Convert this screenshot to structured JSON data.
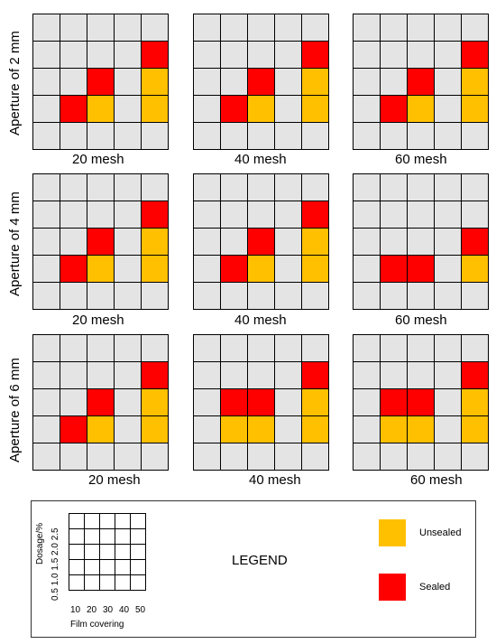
{
  "colors": {
    "empty": "#e4e4e4",
    "unsealed": "#ffc000",
    "sealed": "#ff0000"
  },
  "rows": [
    {
      "label": "Aperture of 2 mm",
      "panels": [
        {
          "mesh": "20 mesh",
          "cells": [
            [
              0,
              0,
              0,
              0,
              0
            ],
            [
              0,
              0,
              0,
              0,
              2
            ],
            [
              0,
              0,
              2,
              0,
              1
            ],
            [
              0,
              2,
              1,
              0,
              1
            ],
            [
              0,
              0,
              0,
              0,
              0
            ]
          ]
        },
        {
          "mesh": "40 mesh",
          "cells": [
            [
              0,
              0,
              0,
              0,
              0
            ],
            [
              0,
              0,
              0,
              0,
              2
            ],
            [
              0,
              0,
              2,
              0,
              1
            ],
            [
              0,
              2,
              1,
              0,
              1
            ],
            [
              0,
              0,
              0,
              0,
              0
            ]
          ]
        },
        {
          "mesh": "60 mesh",
          "cells": [
            [
              0,
              0,
              0,
              0,
              0
            ],
            [
              0,
              0,
              0,
              0,
              2
            ],
            [
              0,
              0,
              2,
              0,
              1
            ],
            [
              0,
              2,
              1,
              0,
              1
            ],
            [
              0,
              0,
              0,
              0,
              0
            ]
          ]
        }
      ]
    },
    {
      "label": "Aperture of 4 mm",
      "panels": [
        {
          "mesh": "20 mesh",
          "cells": [
            [
              0,
              0,
              0,
              0,
              0
            ],
            [
              0,
              0,
              0,
              0,
              2
            ],
            [
              0,
              0,
              2,
              0,
              1
            ],
            [
              0,
              2,
              1,
              0,
              1
            ],
            [
              0,
              0,
              0,
              0,
              0
            ]
          ]
        },
        {
          "mesh": "40 mesh",
          "cells": [
            [
              0,
              0,
              0,
              0,
              0
            ],
            [
              0,
              0,
              0,
              0,
              2
            ],
            [
              0,
              0,
              2,
              0,
              1
            ],
            [
              0,
              2,
              1,
              0,
              1
            ],
            [
              0,
              0,
              0,
              0,
              0
            ]
          ]
        },
        {
          "mesh": "60 mesh",
          "cells": [
            [
              0,
              0,
              0,
              0,
              0
            ],
            [
              0,
              0,
              0,
              0,
              0
            ],
            [
              0,
              0,
              0,
              0,
              2
            ],
            [
              0,
              2,
              2,
              0,
              1
            ],
            [
              0,
              0,
              0,
              0,
              0
            ]
          ]
        }
      ]
    },
    {
      "label": "Aperture of 6 mm",
      "panels": [
        {
          "mesh": "20 mesh",
          "cells": [
            [
              0,
              0,
              0,
              0,
              0
            ],
            [
              0,
              0,
              0,
              0,
              2
            ],
            [
              0,
              0,
              2,
              0,
              1
            ],
            [
              0,
              2,
              1,
              0,
              1
            ],
            [
              0,
              0,
              0,
              0,
              0
            ]
          ]
        },
        {
          "mesh": "40 mesh",
          "cells": [
            [
              0,
              0,
              0,
              0,
              0
            ],
            [
              0,
              0,
              0,
              0,
              2
            ],
            [
              0,
              2,
              2,
              0,
              1
            ],
            [
              0,
              1,
              1,
              0,
              1
            ],
            [
              0,
              0,
              0,
              0,
              0
            ]
          ]
        },
        {
          "mesh": "60 mesh",
          "cells": [
            [
              0,
              0,
              0,
              0,
              0
            ],
            [
              0,
              0,
              0,
              0,
              2
            ],
            [
              0,
              2,
              2,
              0,
              1
            ],
            [
              0,
              1,
              1,
              0,
              1
            ],
            [
              0,
              0,
              0,
              0,
              0
            ]
          ]
        }
      ]
    }
  ],
  "legend": {
    "title": "LEGEND",
    "y_axis_label": "Dosage/%",
    "y_ticks": [
      "0.5",
      "1.0",
      "1.5",
      "2.0",
      "2.5"
    ],
    "x_ticks": [
      "10",
      "20",
      "30",
      "40",
      "50"
    ],
    "x_axis_label": "Film covering",
    "unsealed_label": "Unsealed",
    "sealed_label": "Sealed"
  }
}
